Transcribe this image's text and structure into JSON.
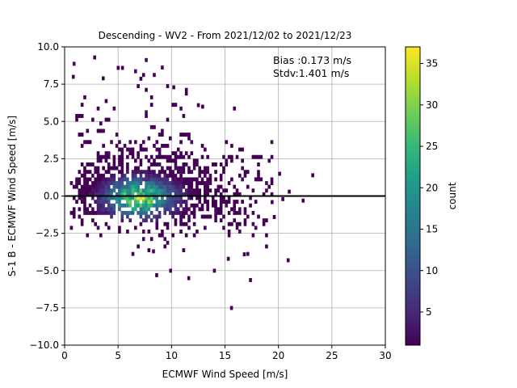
{
  "chart_data": {
    "type": "heatmap",
    "title": "Descending - WV2 - From 2021/12/02 to 2021/12/23",
    "xlabel": "ECMWF Wind Speed [m/s]",
    "ylabel": "S-1 B - ECMWF Wind Speed [m/s]",
    "xlim": [
      0,
      30
    ],
    "ylim": [
      -10,
      10
    ],
    "xticks": [
      "0",
      "5",
      "10",
      "15",
      "20",
      "25",
      "30"
    ],
    "yticks": [
      "−10.0",
      "−7.5",
      "−5.0",
      "−2.5",
      "0.0",
      "2.5",
      "5.0",
      "7.5",
      "10.0"
    ],
    "grid": true,
    "reference_line_y": 0,
    "annotations": [
      "Bias :0.173 m/s",
      "Stdv:1.401 m/s"
    ],
    "colorbar": {
      "label": "count",
      "range": [
        1,
        37
      ],
      "ticks": [
        "5",
        "10",
        "15",
        "20",
        "25",
        "30",
        "35"
      ],
      "colormap": "viridis"
    },
    "density_core": {
      "center_x": 7.0,
      "center_y": -0.1,
      "peak_count": 37
    },
    "outlier_points": [
      {
        "x": 2.8,
        "y": 9.3
      },
      {
        "x": 5.0,
        "y": 8.6
      },
      {
        "x": 5.4,
        "y": 8.6
      },
      {
        "x": 0.8,
        "y": 8.0
      },
      {
        "x": 3.6,
        "y": 7.9
      },
      {
        "x": 10.2,
        "y": 7.3
      },
      {
        "x": 12.5,
        "y": 6.1
      },
      {
        "x": 12.9,
        "y": 6.0
      },
      {
        "x": 23.2,
        "y": 1.4
      },
      {
        "x": 20.1,
        "y": 1.5
      },
      {
        "x": 22.3,
        "y": -0.3
      },
      {
        "x": 21.0,
        "y": 0.3
      },
      {
        "x": 20.4,
        "y": -0.2
      },
      {
        "x": 19.4,
        "y": -0.4
      },
      {
        "x": 19.6,
        "y": -1.4
      },
      {
        "x": 20.9,
        "y": -4.3
      },
      {
        "x": 15.6,
        "y": -7.5
      },
      {
        "x": 8.6,
        "y": -5.3
      },
      {
        "x": 9.9,
        "y": -5.0
      },
      {
        "x": 11.6,
        "y": -5.5
      },
      {
        "x": 14.0,
        "y": -5.0
      },
      {
        "x": 15.3,
        "y": -4.2
      },
      {
        "x": 8.3,
        "y": -3.7
      },
      {
        "x": 16.8,
        "y": -3.9
      }
    ]
  },
  "colors": {
    "viridis": [
      "#440154",
      "#482878",
      "#3e4989",
      "#31688e",
      "#26828e",
      "#1f9e89",
      "#35b779",
      "#6ece58",
      "#b5de2b",
      "#fde725"
    ],
    "grid": "#b0b0b0",
    "reference_line": "#000000"
  }
}
